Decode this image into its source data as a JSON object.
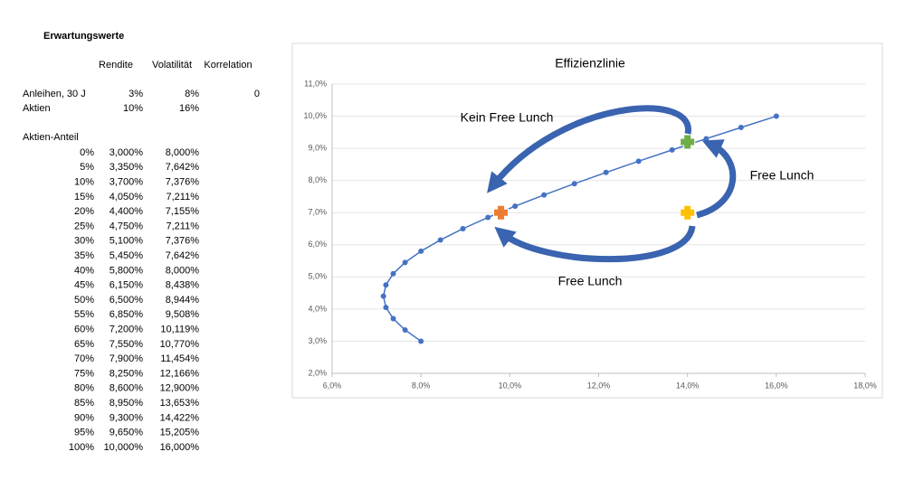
{
  "sheet": {
    "title": "Erwartungswerte",
    "headers": [
      "Rendite",
      "Volatilität",
      "Korrelation"
    ],
    "assets": [
      [
        "Anleihen, 30 J",
        "3%",
        "8%",
        "0"
      ],
      [
        "Aktien",
        "10%",
        "16%"
      ]
    ],
    "mix_label": "Aktien-Anteil",
    "mix_rows": [
      [
        "0%",
        "3,000%",
        "8,000%"
      ],
      [
        "5%",
        "3,350%",
        "7,642%"
      ],
      [
        "10%",
        "3,700%",
        "7,376%"
      ],
      [
        "15%",
        "4,050%",
        "7,211%"
      ],
      [
        "20%",
        "4,400%",
        "7,155%"
      ],
      [
        "25%",
        "4,750%",
        "7,211%"
      ],
      [
        "30%",
        "5,100%",
        "7,376%"
      ],
      [
        "35%",
        "5,450%",
        "7,642%"
      ],
      [
        "40%",
        "5,800%",
        "8,000%"
      ],
      [
        "45%",
        "6,150%",
        "8,438%"
      ],
      [
        "50%",
        "6,500%",
        "8,944%"
      ],
      [
        "55%",
        "6,850%",
        "9,508%"
      ],
      [
        "60%",
        "7,200%",
        "10,119%"
      ],
      [
        "65%",
        "7,550%",
        "10,770%"
      ],
      [
        "70%",
        "7,900%",
        "11,454%"
      ],
      [
        "75%",
        "8,250%",
        "12,166%"
      ],
      [
        "80%",
        "8,600%",
        "12,900%"
      ],
      [
        "85%",
        "8,950%",
        "13,653%"
      ],
      [
        "90%",
        "9,300%",
        "14,422%"
      ],
      [
        "95%",
        "9,650%",
        "15,205%"
      ],
      [
        "100%",
        "10,000%",
        "16,000%"
      ]
    ]
  },
  "chart_data": {
    "type": "line",
    "title": "Effizienzlinie",
    "x": [
      8.0,
      7.642,
      7.376,
      7.211,
      7.155,
      7.211,
      7.376,
      7.642,
      8.0,
      8.438,
      8.944,
      9.508,
      10.119,
      10.77,
      11.454,
      12.166,
      12.9,
      13.653,
      14.422,
      15.205,
      16.0
    ],
    "series": [
      {
        "color": "#4472c4",
        "values": [
          3.0,
          3.35,
          3.7,
          4.05,
          4.4,
          4.75,
          5.1,
          5.45,
          5.8,
          6.15,
          6.5,
          6.85,
          7.2,
          7.55,
          7.9,
          8.25,
          8.6,
          8.95,
          9.3,
          9.65,
          10.0
        ]
      }
    ],
    "highlights": [
      {
        "x": 14.0,
        "y": 9.2,
        "color": "#70ad47"
      },
      {
        "x": 9.8,
        "y": 7.0,
        "color": "#ed7d31"
      },
      {
        "x": 14.0,
        "y": 7.0,
        "color": "#ffc000"
      }
    ],
    "annotations": [
      "Kein Free Lunch",
      "Free Lunch",
      "Free Lunch"
    ],
    "xlim": [
      6,
      18
    ],
    "xticks": [
      {
        "value": 6,
        "label": "6,0%"
      },
      {
        "value": 8,
        "label": "8,0%"
      },
      {
        "value": 10,
        "label": "10,0%"
      },
      {
        "value": 12,
        "label": "12,0%"
      },
      {
        "value": 14,
        "label": "14,0%"
      },
      {
        "value": 16,
        "label": "16,0%"
      },
      {
        "value": 18,
        "label": "18,0%"
      }
    ],
    "ylim": [
      2,
      11
    ],
    "yticks": [
      {
        "value": 2,
        "label": "2,0%"
      },
      {
        "value": 3,
        "label": "3,0%"
      },
      {
        "value": 4,
        "label": "4,0%"
      },
      {
        "value": 5,
        "label": "5,0%"
      },
      {
        "value": 6,
        "label": "6,0%"
      },
      {
        "value": 7,
        "label": "7,0%"
      },
      {
        "value": 8,
        "label": "8,0%"
      },
      {
        "value": 9,
        "label": "9,0%"
      },
      {
        "value": 10,
        "label": "10,0%"
      },
      {
        "value": 11,
        "label": "11,0%"
      }
    ],
    "grid": true
  }
}
